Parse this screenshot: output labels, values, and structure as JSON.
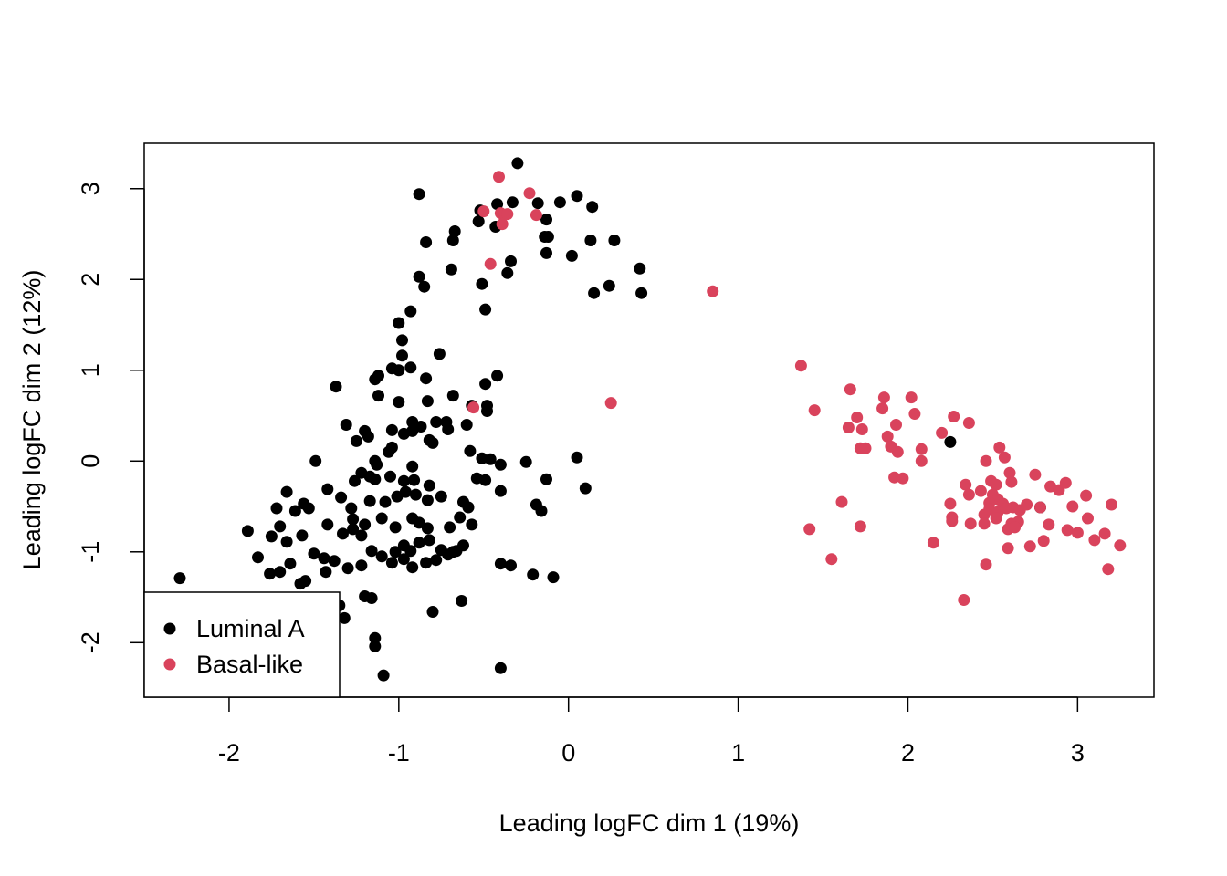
{
  "chart_data": {
    "type": "scatter",
    "title": "",
    "xlabel": "Leading logFC dim 1 (19%)",
    "ylabel": "Leading logFC dim 2 (12%)",
    "xlim": [
      -2.5,
      3.45
    ],
    "ylim": [
      -2.6,
      3.5
    ],
    "xticks": [
      -2,
      -1,
      0,
      1,
      2,
      3
    ],
    "yticks": [
      -2,
      -1,
      0,
      1,
      2,
      3
    ],
    "xtick_labels": [
      "-2",
      "-1",
      "0",
      "1",
      "2",
      "3"
    ],
    "ytick_labels": [
      "-2",
      "-1",
      "0",
      "1",
      "2",
      "3"
    ],
    "grid": false,
    "legend_position": "bottom-left",
    "series": [
      {
        "name": "Luminal A",
        "color": "#000000",
        "points": [
          [
            -0.3,
            3.28
          ],
          [
            -0.88,
            2.94
          ],
          [
            -0.42,
            2.83
          ],
          [
            -0.52,
            2.76
          ],
          [
            -0.33,
            2.85
          ],
          [
            -0.18,
            2.84
          ],
          [
            -0.05,
            2.85
          ],
          [
            0.05,
            2.92
          ],
          [
            0.14,
            2.8
          ],
          [
            -0.53,
            2.64
          ],
          [
            -0.43,
            2.58
          ],
          [
            -0.67,
            2.53
          ],
          [
            -0.68,
            2.43
          ],
          [
            -0.84,
            2.41
          ],
          [
            -0.13,
            2.66
          ],
          [
            -0.14,
            2.47
          ],
          [
            -0.12,
            2.47
          ],
          [
            0.13,
            2.43
          ],
          [
            0.27,
            2.43
          ],
          [
            -0.34,
            2.2
          ],
          [
            -0.36,
            2.07
          ],
          [
            -0.13,
            2.29
          ],
          [
            0.02,
            2.26
          ],
          [
            0.42,
            2.12
          ],
          [
            -0.69,
            2.11
          ],
          [
            -0.88,
            2.03
          ],
          [
            -0.51,
            1.95
          ],
          [
            -0.85,
            1.92
          ],
          [
            0.15,
            1.85
          ],
          [
            0.24,
            1.93
          ],
          [
            0.43,
            1.85
          ],
          [
            -0.49,
            1.67
          ],
          [
            -0.93,
            1.65
          ],
          [
            -1.0,
            1.52
          ],
          [
            -0.98,
            1.33
          ],
          [
            -0.98,
            1.16
          ],
          [
            -0.76,
            1.18
          ],
          [
            -1.04,
            1.02
          ],
          [
            -1.0,
            1.0
          ],
          [
            -0.93,
            1.03
          ],
          [
            -1.12,
            0.94
          ],
          [
            -1.14,
            0.9
          ],
          [
            -0.42,
            0.94
          ],
          [
            -0.49,
            0.85
          ],
          [
            -0.84,
            0.91
          ],
          [
            -1.37,
            0.82
          ],
          [
            -1.0,
            0.65
          ],
          [
            -0.83,
            0.66
          ],
          [
            -0.68,
            0.72
          ],
          [
            -1.12,
            0.72
          ],
          [
            -0.57,
            0.61
          ],
          [
            -0.48,
            0.61
          ],
          [
            -0.48,
            0.55
          ],
          [
            -1.31,
            0.4
          ],
          [
            -1.2,
            0.33
          ],
          [
            -1.04,
            0.34
          ],
          [
            -0.92,
            0.43
          ],
          [
            -0.87,
            0.38
          ],
          [
            -0.78,
            0.43
          ],
          [
            -0.72,
            0.43
          ],
          [
            -0.71,
            0.35
          ],
          [
            -0.6,
            0.4
          ],
          [
            -1.18,
            0.27
          ],
          [
            -1.25,
            0.22
          ],
          [
            -1.04,
            0.15
          ],
          [
            -0.97,
            0.3
          ],
          [
            -0.92,
            0.33
          ],
          [
            -0.82,
            0.23
          ],
          [
            -0.8,
            0.2
          ],
          [
            -1.06,
            0.1
          ],
          [
            -0.58,
            0.11
          ],
          [
            -0.51,
            0.03
          ],
          [
            -0.46,
            0.02
          ],
          [
            -0.4,
            -0.04
          ],
          [
            -0.25,
            -0.01
          ],
          [
            0.05,
            0.04
          ],
          [
            -1.49,
            0.0
          ],
          [
            -1.14,
            0.0
          ],
          [
            -1.13,
            -0.04
          ],
          [
            -1.22,
            -0.13
          ],
          [
            -1.17,
            -0.17
          ],
          [
            -1.26,
            -0.22
          ],
          [
            -1.14,
            -0.2
          ],
          [
            -1.05,
            -0.17
          ],
          [
            -0.97,
            -0.22
          ],
          [
            -0.92,
            -0.06
          ],
          [
            -0.91,
            -0.21
          ],
          [
            -0.82,
            -0.27
          ],
          [
            -0.54,
            -0.19
          ],
          [
            -0.49,
            -0.21
          ],
          [
            -0.13,
            -0.2
          ],
          [
            -1.66,
            -0.34
          ],
          [
            -1.56,
            -0.47
          ],
          [
            -1.53,
            -0.52
          ],
          [
            -1.42,
            -0.31
          ],
          [
            -1.34,
            -0.4
          ],
          [
            -1.28,
            -0.52
          ],
          [
            -1.17,
            -0.44
          ],
          [
            -1.08,
            -0.45
          ],
          [
            -1.01,
            -0.39
          ],
          [
            -0.96,
            -0.34
          ],
          [
            -0.9,
            -0.37
          ],
          [
            -0.83,
            -0.43
          ],
          [
            -0.75,
            -0.39
          ],
          [
            -0.62,
            -0.45
          ],
          [
            -0.59,
            -0.51
          ],
          [
            -0.4,
            -0.33
          ],
          [
            -0.19,
            -0.48
          ],
          [
            -0.16,
            -0.55
          ],
          [
            0.1,
            -0.3
          ],
          [
            -1.72,
            -0.52
          ],
          [
            -1.61,
            -0.55
          ],
          [
            -1.42,
            -0.7
          ],
          [
            -1.33,
            -0.8
          ],
          [
            -1.27,
            -0.64
          ],
          [
            -1.2,
            -0.7
          ],
          [
            -1.1,
            -0.63
          ],
          [
            -1.02,
            -0.73
          ],
          [
            -0.92,
            -0.63
          ],
          [
            -0.88,
            -0.68
          ],
          [
            -0.83,
            -0.74
          ],
          [
            -0.7,
            -0.73
          ],
          [
            -0.64,
            -0.62
          ],
          [
            -0.57,
            -0.7
          ],
          [
            -1.89,
            -0.77
          ],
          [
            -1.7,
            -0.72
          ],
          [
            -1.75,
            -0.83
          ],
          [
            -1.66,
            -0.89
          ],
          [
            -1.57,
            -0.82
          ],
          [
            -1.27,
            -0.75
          ],
          [
            -1.22,
            -0.82
          ],
          [
            -1.16,
            -0.99
          ],
          [
            -1.02,
            -1.0
          ],
          [
            -0.97,
            -0.93
          ],
          [
            -0.93,
            -0.99
          ],
          [
            -0.88,
            -0.9
          ],
          [
            -0.82,
            -0.87
          ],
          [
            -0.75,
            -0.98
          ],
          [
            -0.68,
            -1.0
          ],
          [
            -0.62,
            -0.93
          ],
          [
            -1.83,
            -1.06
          ],
          [
            -1.76,
            -1.24
          ],
          [
            -1.7,
            -1.22
          ],
          [
            -1.64,
            -1.13
          ],
          [
            -1.5,
            -1.02
          ],
          [
            -1.44,
            -1.07
          ],
          [
            -1.38,
            -1.1
          ],
          [
            -1.3,
            -1.18
          ],
          [
            -1.22,
            -1.15
          ],
          [
            -1.1,
            -1.05
          ],
          [
            -1.04,
            -1.12
          ],
          [
            -0.97,
            -1.08
          ],
          [
            -0.92,
            -1.17
          ],
          [
            -0.84,
            -1.12
          ],
          [
            -0.78,
            -1.09
          ],
          [
            -0.71,
            -1.03
          ],
          [
            -0.66,
            -0.99
          ],
          [
            -1.58,
            -1.35
          ],
          [
            -1.55,
            -1.32
          ],
          [
            -1.43,
            -1.22
          ],
          [
            -1.2,
            -1.49
          ],
          [
            -1.16,
            -1.51
          ],
          [
            -1.35,
            -1.59
          ],
          [
            -1.32,
            -1.73
          ],
          [
            -0.4,
            -1.13
          ],
          [
            -0.34,
            -1.15
          ],
          [
            -0.21,
            -1.25
          ],
          [
            -0.09,
            -1.28
          ],
          [
            -0.63,
            -1.54
          ],
          [
            -0.8,
            -1.66
          ],
          [
            -1.14,
            -1.95
          ],
          [
            -1.14,
            -2.04
          ],
          [
            -1.09,
            -2.36
          ],
          [
            -0.4,
            -2.28
          ],
          [
            -2.29,
            -1.29
          ],
          [
            2.25,
            0.21
          ],
          [
            2.78,
            -0.51
          ]
        ]
      },
      {
        "name": "Basal-like",
        "color": "#D9435C",
        "points": [
          [
            -0.41,
            3.13
          ],
          [
            -0.23,
            2.95
          ],
          [
            -0.5,
            2.75
          ],
          [
            -0.4,
            2.73
          ],
          [
            -0.36,
            2.72
          ],
          [
            -0.19,
            2.71
          ],
          [
            -0.39,
            2.61
          ],
          [
            -0.46,
            2.17
          ],
          [
            0.85,
            1.87
          ],
          [
            0.25,
            0.64
          ],
          [
            -0.56,
            0.59
          ],
          [
            1.37,
            1.05
          ],
          [
            1.45,
            0.56
          ],
          [
            1.66,
            0.79
          ],
          [
            1.65,
            0.37
          ],
          [
            1.7,
            0.48
          ],
          [
            1.72,
            0.14
          ],
          [
            1.73,
            0.35
          ],
          [
            1.75,
            0.14
          ],
          [
            1.85,
            0.58
          ],
          [
            1.86,
            0.7
          ],
          [
            1.88,
            0.27
          ],
          [
            1.9,
            0.16
          ],
          [
            1.93,
            0.4
          ],
          [
            1.94,
            0.1
          ],
          [
            2.02,
            0.7
          ],
          [
            2.04,
            0.52
          ],
          [
            2.08,
            0.13
          ],
          [
            2.08,
            0.0
          ],
          [
            2.2,
            0.31
          ],
          [
            2.27,
            0.49
          ],
          [
            2.36,
            0.42
          ],
          [
            1.92,
            -0.18
          ],
          [
            1.97,
            -0.19
          ],
          [
            2.46,
            0.0
          ],
          [
            2.54,
            0.15
          ],
          [
            2.57,
            0.04
          ],
          [
            2.6,
            -0.13
          ],
          [
            2.61,
            -0.23
          ],
          [
            2.34,
            -0.26
          ],
          [
            2.49,
            -0.22
          ],
          [
            2.52,
            -0.26
          ],
          [
            2.36,
            -0.37
          ],
          [
            2.43,
            -0.33
          ],
          [
            2.5,
            -0.37
          ],
          [
            2.53,
            -0.42
          ],
          [
            2.75,
            -0.15
          ],
          [
            2.84,
            -0.28
          ],
          [
            2.89,
            -0.32
          ],
          [
            2.93,
            -0.24
          ],
          [
            3.05,
            -0.38
          ],
          [
            2.25,
            -0.47
          ],
          [
            2.48,
            -0.46
          ],
          [
            2.56,
            -0.47
          ],
          [
            2.62,
            -0.51
          ],
          [
            2.66,
            -0.54
          ],
          [
            2.7,
            -0.48
          ],
          [
            2.78,
            -0.51
          ],
          [
            2.97,
            -0.5
          ],
          [
            3.2,
            -0.48
          ],
          [
            2.26,
            -0.62
          ],
          [
            2.26,
            -0.66
          ],
          [
            2.45,
            -0.59
          ],
          [
            2.48,
            -0.53
          ],
          [
            2.53,
            -0.56
          ],
          [
            2.58,
            -0.52
          ],
          [
            2.37,
            -0.69
          ],
          [
            2.45,
            -0.69
          ],
          [
            2.52,
            -0.63
          ],
          [
            2.61,
            -0.69
          ],
          [
            2.65,
            -0.67
          ],
          [
            2.59,
            -0.75
          ],
          [
            2.63,
            -0.73
          ],
          [
            2.83,
            -0.7
          ],
          [
            2.94,
            -0.76
          ],
          [
            3.0,
            -0.79
          ],
          [
            3.06,
            -0.63
          ],
          [
            3.1,
            -0.87
          ],
          [
            3.16,
            -0.8
          ],
          [
            3.25,
            -0.93
          ],
          [
            2.59,
            -0.96
          ],
          [
            2.72,
            -0.94
          ],
          [
            2.8,
            -0.88
          ],
          [
            3.18,
            -1.19
          ],
          [
            2.46,
            -1.14
          ],
          [
            2.33,
            -1.53
          ],
          [
            2.15,
            -0.9
          ],
          [
            1.61,
            -0.45
          ],
          [
            1.72,
            -0.72
          ],
          [
            1.42,
            -0.75
          ],
          [
            1.55,
            -1.08
          ]
        ]
      }
    ]
  }
}
